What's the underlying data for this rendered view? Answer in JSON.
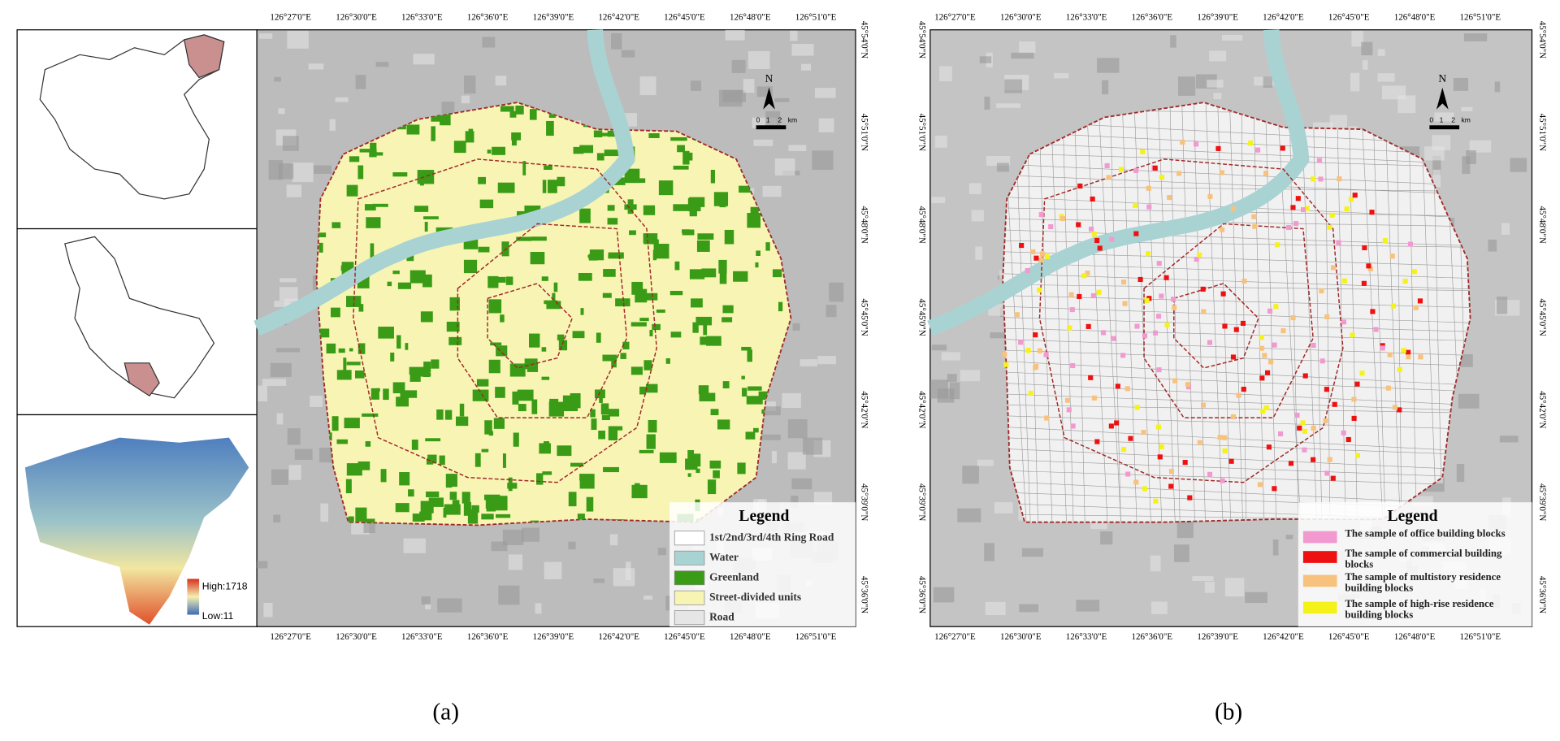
{
  "panel_a": {
    "insets": {
      "elevation_high": "High:1718",
      "elevation_low": "Low:11"
    },
    "x_labels": [
      "126°27'0\"E",
      "126°30'0\"E",
      "126°33'0\"E",
      "126°36'0\"E",
      "126°39'0\"E",
      "126°42'0\"E",
      "126°45'0\"E",
      "126°48'0\"E",
      "126°51'0\"E"
    ],
    "y_labels": [
      "45°54'0\"N",
      "45°51'0\"N",
      "45°48'0\"N",
      "45°45'0\"N",
      "45°42'0\"N",
      "45°39'0\"N",
      "45°36'0\"N"
    ],
    "north": "N",
    "scale": [
      "0",
      "1",
      "2",
      "km"
    ],
    "legend": {
      "title": "Legend",
      "items": [
        {
          "label": [
            "1st/2nd/3rd/4th Ring Road"
          ],
          "color": "#ffffff"
        },
        {
          "label": [
            "Water"
          ],
          "color": "#a9d3d3"
        },
        {
          "label": [
            "Greenland"
          ],
          "color": "#3a9c16"
        },
        {
          "label": [
            "Street-divided units"
          ],
          "color": "#f8f5b4"
        },
        {
          "label": [
            "Road"
          ],
          "color": "#e6e6e6"
        }
      ]
    }
  },
  "panel_b": {
    "x_labels": [
      "126°27'0\"E",
      "126°30'0\"E",
      "126°33'0\"E",
      "126°36'0\"E",
      "126°39'0\"E",
      "126°42'0\"E",
      "126°45'0\"E",
      "126°48'0\"E",
      "126°51'0\"E"
    ],
    "y_labels": [
      "45°54'0\"N",
      "45°51'0\"N",
      "45°48'0\"N",
      "45°45'0\"N",
      "45°42'0\"N",
      "45°39'0\"N",
      "45°36'0\"N"
    ],
    "north": "N",
    "scale": [
      "0",
      "1",
      "2",
      "km"
    ],
    "legend": {
      "title": "Legend",
      "items": [
        {
          "label": [
            "The sample of office building blocks"
          ],
          "color": "#f29ad0"
        },
        {
          "label": [
            "The sample of commercial building",
            "blocks"
          ],
          "color": "#ee1111"
        },
        {
          "label": [
            "The sample of multistory residence",
            "building blocks"
          ],
          "color": "#f7c27e"
        },
        {
          "label": [
            "The sample of high-rise residence",
            "building blocks"
          ],
          "color": "#f5f21a"
        }
      ]
    }
  },
  "captions": [
    "(a)",
    "(b)"
  ]
}
